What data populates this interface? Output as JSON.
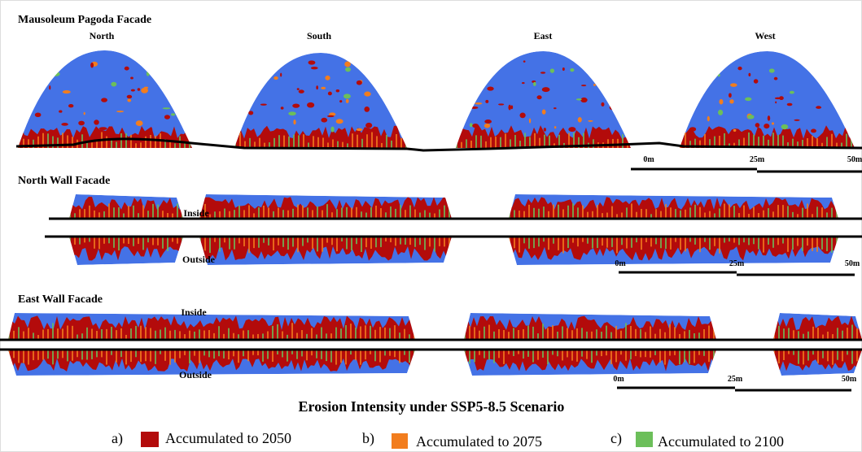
{
  "sections": [
    {
      "title": "Mausoleum Pagoda Facade",
      "labels": [
        "North",
        "South",
        "East",
        "West"
      ],
      "scale": [
        "0m",
        "25m",
        "50m"
      ]
    },
    {
      "title": "North Wall Facade",
      "labels": [
        "Inside",
        "Outside"
      ],
      "scale": [
        "0m",
        "25m",
        "50m"
      ]
    },
    {
      "title": "East Wall Facade",
      "labels": [
        "Inside",
        "Outside"
      ],
      "scale": [
        "0m",
        "25m",
        "50m"
      ]
    }
  ],
  "legend": {
    "title": "Erosion Intensity under SSP5-8.5 Scenario",
    "items": [
      {
        "marker": "a)",
        "label": "Accumulated to 2050",
        "color": "#b30b0b"
      },
      {
        "marker": "b)",
        "label": "Accumulated to 2075",
        "color": "#f27d1e"
      },
      {
        "marker": "c)",
        "label": "Accumulated to 2100",
        "color": "#6cbf5a"
      }
    ]
  }
}
